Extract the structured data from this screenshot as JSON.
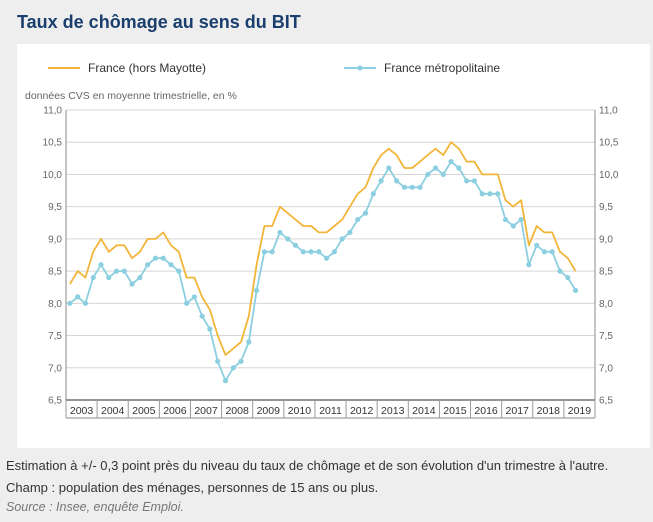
{
  "title": "Taux de chômage au sens du BIT",
  "colors": {
    "series1": "#f2b53a",
    "series2": "#8ccfe0",
    "panel": "#ffffff",
    "background": "#eeeeee",
    "title": "#1a3f6e"
  },
  "footnotes": {
    "line1": "Estimation à +/- 0,3 point près du niveau du taux de chômage et de son évolution d'un trimestre à l'autre.",
    "line2": "Champ : population des ménages, personnes de 15 ans ou plus.",
    "source": "Source : Insee, enquête Emploi."
  },
  "chart_data": {
    "type": "line",
    "unit_label": "données CVS en moyenne trimestrielle, en %",
    "ylim": [
      6.5,
      11.0
    ],
    "yticks": [
      "6,5",
      "7,0",
      "7,5",
      "8,0",
      "8,5",
      "9,0",
      "9,5",
      "10,0",
      "10,5",
      "11,0"
    ],
    "year_labels": [
      "2003",
      "2004",
      "2005",
      "2006",
      "2007",
      "2008",
      "2009",
      "2010",
      "2011",
      "2012",
      "2013",
      "2014",
      "2015",
      "2016",
      "2017",
      "2018",
      "2019"
    ],
    "x_start_year": 2003,
    "legend_position": "top",
    "series": [
      {
        "name": "France (hors Mayotte)",
        "color": "#f2b53a",
        "markers": false,
        "values": [
          8.3,
          8.5,
          8.4,
          8.8,
          9.0,
          8.8,
          8.9,
          8.9,
          8.7,
          8.8,
          9.0,
          9.0,
          9.1,
          8.9,
          8.8,
          8.4,
          8.4,
          8.1,
          7.9,
          7.5,
          7.2,
          7.3,
          7.4,
          7.8,
          8.6,
          9.2,
          9.2,
          9.5,
          9.4,
          9.3,
          9.2,
          9.2,
          9.1,
          9.1,
          9.2,
          9.3,
          9.5,
          9.7,
          9.8,
          10.1,
          10.3,
          10.4,
          10.3,
          10.1,
          10.1,
          10.2,
          10.3,
          10.4,
          10.3,
          10.5,
          10.4,
          10.2,
          10.2,
          10.0,
          10.0,
          10.0,
          9.6,
          9.5,
          9.6,
          8.9,
          9.2,
          9.1,
          9.1,
          8.8,
          8.7,
          8.5
        ]
      },
      {
        "name": "France métropolitaine",
        "color": "#8ccfe0",
        "markers": true,
        "values": [
          8.0,
          8.1,
          8.0,
          8.4,
          8.6,
          8.4,
          8.5,
          8.5,
          8.3,
          8.4,
          8.6,
          8.7,
          8.7,
          8.6,
          8.5,
          8.0,
          8.1,
          7.8,
          7.6,
          7.1,
          6.8,
          7.0,
          7.1,
          7.4,
          8.2,
          8.8,
          8.8,
          9.1,
          9.0,
          8.9,
          8.8,
          8.8,
          8.8,
          8.7,
          8.8,
          9.0,
          9.1,
          9.3,
          9.4,
          9.7,
          9.9,
          10.1,
          9.9,
          9.8,
          9.8,
          9.8,
          10.0,
          10.1,
          10.0,
          10.2,
          10.1,
          9.9,
          9.9,
          9.7,
          9.7,
          9.7,
          9.3,
          9.2,
          9.3,
          8.6,
          8.9,
          8.8,
          8.8,
          8.5,
          8.4,
          8.2
        ]
      }
    ]
  }
}
